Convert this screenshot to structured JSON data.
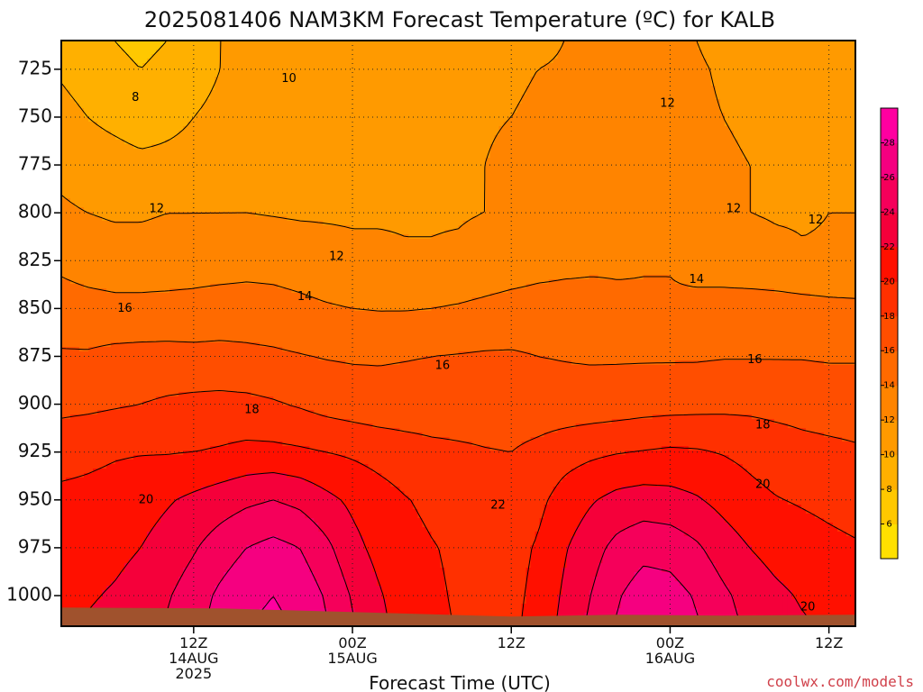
{
  "chart_data": {
    "type": "heatmap",
    "title": "2025081406 NAM3KM Forecast Temperature (ºC) for KALB",
    "xlabel": "Forecast Time (UTC)",
    "ylabel": "",
    "credit": "coolwx.com/models",
    "y_axis": {
      "ticks": [
        725,
        750,
        775,
        800,
        825,
        850,
        875,
        900,
        925,
        950,
        975,
        1000
      ],
      "ylim": [
        1016,
        710
      ],
      "inverted": true,
      "grid": "dotted"
    },
    "x_axis": {
      "range_hours": [
        7,
        37
      ],
      "ticks": [
        {
          "hour": 12,
          "lines": [
            "12Z",
            "14AUG",
            "2025"
          ]
        },
        {
          "hour": 18,
          "lines": [
            "00Z",
            "15AUG"
          ]
        },
        {
          "hour": 24,
          "lines": [
            "12Z"
          ]
        },
        {
          "hour": 30,
          "lines": [
            "00Z",
            "16AUG"
          ]
        },
        {
          "hour": 36,
          "lines": [
            "12Z"
          ]
        }
      ],
      "grid": "dotted"
    },
    "colorbar": {
      "levels": [
        4,
        6,
        8,
        10,
        12,
        14,
        16,
        18,
        20,
        22,
        24,
        26,
        28,
        30
      ],
      "labels": [
        6,
        8,
        10,
        12,
        14,
        16,
        18,
        20,
        22,
        24,
        26,
        28
      ],
      "colors": [
        "#ffe000",
        "#ffc800",
        "#ffb000",
        "#ff9a00",
        "#ff8400",
        "#ff6a00",
        "#ff4e00",
        "#ff3000",
        "#ff1000",
        "#f5003a",
        "#f5005a",
        "#f50080",
        "#ff00a0"
      ]
    },
    "terrain_color": "#a0522d",
    "surface_pressure_hpa": 1010,
    "time_hours": [
      7,
      8,
      9,
      10,
      11,
      12,
      13,
      14,
      15,
      16,
      17,
      18,
      19,
      20,
      21,
      22,
      23,
      24,
      25,
      26,
      27,
      28,
      29,
      30,
      31,
      32,
      33,
      34,
      35,
      36,
      37
    ],
    "pressure_levels_hpa": [
      710,
      725,
      750,
      775,
      800,
      825,
      850,
      875,
      900,
      925,
      950,
      975,
      1000,
      1016
    ],
    "temperature_grid_c": [
      [
        9.5,
        9.0,
        8.0,
        7.5,
        8.0,
        9.0,
        10.0,
        10.5,
        10.5,
        10.5,
        11.0,
        11.0,
        11.0,
        11.0,
        11.0,
        11.5,
        11.5,
        11.5,
        11.5,
        12.0,
        12.5,
        12.5,
        12.5,
        12.5,
        12.0,
        11.5,
        11.5,
        11.5,
        11.5,
        11.5,
        11.5
      ],
      [
        9.8,
        9.3,
        8.5,
        8.0,
        8.5,
        9.5,
        10.0,
        10.5,
        10.8,
        11.0,
        11.2,
        11.3,
        11.3,
        11.3,
        11.3,
        11.6,
        11.7,
        11.8,
        12.0,
        12.2,
        12.4,
        12.5,
        12.5,
        12.5,
        12.2,
        11.8,
        11.7,
        11.6,
        11.6,
        11.6,
        11.6
      ],
      [
        10.5,
        10.0,
        9.5,
        9.0,
        9.5,
        10.0,
        10.3,
        10.6,
        11.0,
        11.2,
        11.4,
        11.5,
        11.5,
        11.5,
        11.5,
        11.7,
        11.9,
        12.0,
        12.2,
        12.5,
        12.5,
        12.5,
        12.5,
        12.5,
        12.3,
        12.0,
        11.8,
        11.7,
        11.7,
        11.7,
        11.7
      ],
      [
        11.5,
        11.0,
        10.8,
        10.5,
        10.5,
        10.6,
        10.8,
        11.0,
        11.2,
        11.4,
        11.6,
        11.7,
        11.8,
        11.8,
        11.8,
        11.8,
        12.0,
        12.2,
        12.4,
        12.6,
        12.7,
        12.7,
        12.7,
        12.6,
        12.4,
        12.2,
        12.0,
        11.9,
        11.9,
        11.9,
        11.9
      ],
      [
        12.3,
        12.0,
        11.8,
        11.8,
        12.0,
        12.0,
        12.0,
        12.0,
        11.9,
        11.8,
        11.8,
        11.8,
        11.9,
        11.9,
        11.9,
        11.9,
        12.0,
        12.2,
        12.5,
        12.8,
        12.9,
        13.0,
        13.0,
        12.9,
        12.6,
        12.2,
        12.0,
        11.9,
        11.9,
        12.0,
        12.0
      ],
      [
        13.5,
        13.0,
        12.8,
        12.8,
        12.8,
        12.9,
        13.0,
        13.2,
        13.2,
        13.0,
        12.7,
        12.4,
        12.2,
        12.1,
        12.1,
        12.2,
        12.5,
        12.8,
        13.2,
        13.5,
        13.7,
        13.8,
        13.9,
        13.9,
        13.5,
        13.0,
        12.6,
        12.3,
        12.1,
        12.1,
        12.1
      ],
      [
        15.0,
        14.8,
        14.6,
        14.6,
        14.7,
        14.8,
        15.0,
        15.0,
        14.8,
        14.5,
        14.2,
        14.0,
        13.9,
        13.9,
        14.0,
        14.2,
        14.5,
        14.8,
        14.9,
        14.8,
        14.6,
        14.3,
        14.2,
        14.2,
        14.4,
        14.8,
        15.0,
        15.0,
        14.8,
        14.6,
        14.5
      ],
      [
        16.2,
        16.2,
        16.5,
        16.6,
        16.6,
        16.5,
        16.5,
        16.4,
        16.3,
        16.1,
        15.9,
        15.8,
        15.8,
        15.9,
        16.0,
        16.1,
        16.2,
        16.2,
        16.0,
        15.9,
        15.8,
        15.8,
        15.8,
        15.8,
        15.8,
        15.9,
        15.9,
        15.9,
        15.9,
        15.8,
        15.8
      ],
      [
        17.5,
        17.6,
        17.8,
        18.0,
        18.3,
        18.5,
        18.6,
        18.5,
        18.2,
        17.8,
        17.3,
        17.0,
        16.8,
        16.8,
        16.9,
        17.0,
        17.1,
        17.0,
        16.9,
        16.8,
        16.9,
        17.0,
        17.2,
        17.3,
        17.4,
        17.5,
        17.5,
        17.4,
        17.3,
        17.2,
        17.2
      ],
      [
        19.2,
        19.5,
        19.8,
        19.9,
        19.9,
        20.0,
        20.2,
        20.5,
        20.5,
        20.3,
        20.0,
        19.7,
        19.3,
        18.9,
        18.5,
        18.3,
        18.1,
        18.0,
        18.5,
        19.2,
        19.6,
        19.9,
        20.1,
        20.3,
        20.2,
        19.9,
        19.5,
        19.0,
        18.6,
        18.4,
        18.2
      ],
      [
        20.5,
        20.6,
        20.8,
        21.2,
        21.8,
        22.4,
        23.0,
        23.6,
        24.0,
        23.5,
        22.5,
        21.6,
        20.8,
        20.1,
        19.6,
        19.2,
        18.9,
        18.7,
        19.5,
        20.8,
        21.8,
        22.6,
        22.9,
        22.7,
        22.2,
        21.4,
        20.6,
        20.1,
        19.8,
        19.5,
        19.2
      ],
      [
        21.0,
        21.2,
        21.5,
        22.0,
        22.8,
        23.8,
        25.0,
        26.0,
        26.6,
        26.0,
        24.5,
        22.6,
        21.4,
        20.6,
        20.1,
        19.7,
        19.4,
        19.3,
        20.2,
        21.8,
        23.2,
        24.6,
        25.4,
        25.2,
        24.3,
        23.0,
        22.0,
        21.3,
        20.9,
        20.5,
        20.2
      ],
      [
        21.5,
        21.8,
        22.2,
        22.8,
        23.8,
        25.0,
        26.4,
        27.5,
        28.0,
        27.4,
        25.8,
        23.8,
        22.2,
        21.0,
        20.3,
        19.8,
        19.6,
        19.5,
        20.5,
        22.3,
        24.0,
        25.8,
        27.0,
        26.8,
        25.8,
        24.4,
        23.2,
        22.4,
        21.8,
        21.4,
        21.2
      ],
      [
        21.8,
        22.2,
        22.6,
        23.2,
        24.2,
        25.4,
        26.8,
        28.0,
        28.4,
        27.8,
        26.2,
        24.2,
        22.5,
        21.2,
        20.4,
        19.9,
        19.7,
        19.6,
        20.7,
        22.6,
        24.4,
        26.2,
        27.4,
        27.2,
        26.2,
        24.8,
        23.6,
        22.8,
        22.2,
        21.8,
        21.6
      ]
    ],
    "contour_labels": [
      {
        "text": "8",
        "hour": 9.8,
        "p": 740
      },
      {
        "text": "10",
        "hour": 15.6,
        "p": 730
      },
      {
        "text": "12",
        "hour": 10.6,
        "p": 798
      },
      {
        "text": "12",
        "hour": 17.4,
        "p": 823
      },
      {
        "text": "12",
        "hour": 29.9,
        "p": 743
      },
      {
        "text": "12",
        "hour": 32.4,
        "p": 798
      },
      {
        "text": "12",
        "hour": 35.5,
        "p": 804
      },
      {
        "text": "14",
        "hour": 16.2,
        "p": 844
      },
      {
        "text": "14",
        "hour": 31.0,
        "p": 835
      },
      {
        "text": "16",
        "hour": 9.4,
        "p": 850
      },
      {
        "text": "16",
        "hour": 21.4,
        "p": 880
      },
      {
        "text": "16",
        "hour": 33.2,
        "p": 877
      },
      {
        "text": "18",
        "hour": 14.2,
        "p": 903
      },
      {
        "text": "18",
        "hour": 33.5,
        "p": 911
      },
      {
        "text": "20",
        "hour": 10.2,
        "p": 950
      },
      {
        "text": "20",
        "hour": 33.5,
        "p": 942
      },
      {
        "text": "20",
        "hour": 35.2,
        "p": 1006
      },
      {
        "text": "22",
        "hour": 23.5,
        "p": 953
      }
    ]
  }
}
